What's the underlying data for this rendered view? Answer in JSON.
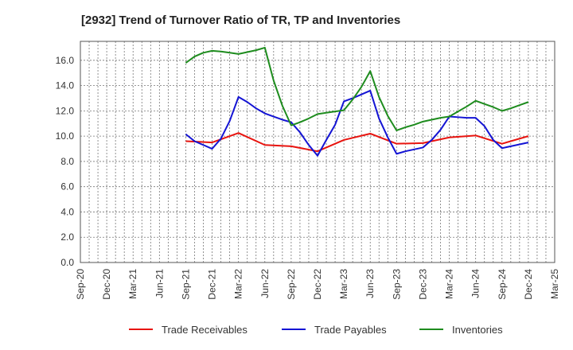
{
  "chart_data": {
    "type": "line",
    "title": "[2932]  Trend of Turnover Ratio of TR, TP and Inventories",
    "xlabel": "",
    "ylabel": "",
    "ylim": [
      0,
      17.5
    ],
    "yticks": [
      "0.0",
      "2.0",
      "4.0",
      "6.0",
      "8.0",
      "10.0",
      "12.0",
      "14.0",
      "16.0"
    ],
    "ytick_values": [
      0,
      2,
      4,
      6,
      8,
      10,
      12,
      14,
      16
    ],
    "x_tick_labels": [
      "Sep-20",
      "Dec-20",
      "Mar-21",
      "Jun-21",
      "Sep-21",
      "Dec-21",
      "Mar-22",
      "Jun-22",
      "Sep-22",
      "Dec-22",
      "Mar-23",
      "Jun-23",
      "Sep-23",
      "Dec-23",
      "Mar-24",
      "Jun-24",
      "Sep-24",
      "Dec-24",
      "Mar-25"
    ],
    "grid": true,
    "legend_position": "bottom",
    "series": [
      {
        "name": "Trade Receivables",
        "color": "#e8140f",
        "x": [
          "Sep-21",
          "Dec-21",
          "Mar-22",
          "Jun-22",
          "Sep-22",
          "Dec-22",
          "Mar-23",
          "Jun-23",
          "Sep-23",
          "Dec-23",
          "Mar-24",
          "Jun-24",
          "Sep-24",
          "Dec-24"
        ],
        "values": [
          9.6,
          9.5,
          10.25,
          9.3,
          9.2,
          8.8,
          9.7,
          10.2,
          9.4,
          9.45,
          9.9,
          10.05,
          9.4,
          10.0
        ]
      },
      {
        "name": "Trade Payables",
        "color": "#1414d4",
        "x": [
          "Sep-21",
          "Oct-21",
          "Nov-21",
          "Dec-21",
          "Jan-22",
          "Feb-22",
          "Mar-22",
          "Apr-22",
          "May-22",
          "Jun-22",
          "Jul-22",
          "Aug-22",
          "Sep-22",
          "Oct-22",
          "Nov-22",
          "Dec-22",
          "Jan-23",
          "Feb-23",
          "Mar-23",
          "Apr-23",
          "May-23",
          "Jun-23",
          "Jul-23",
          "Aug-23",
          "Sep-23",
          "Oct-23",
          "Nov-23",
          "Dec-23",
          "Jan-24",
          "Feb-24",
          "Mar-24",
          "Apr-24",
          "May-24",
          "Jun-24",
          "Jul-24",
          "Aug-24",
          "Sep-24",
          "Oct-24",
          "Nov-24",
          "Dec-24"
        ],
        "values": [
          10.15,
          9.6,
          9.3,
          9.0,
          9.8,
          11.2,
          13.1,
          12.7,
          12.2,
          11.8,
          11.55,
          11.3,
          11.1,
          10.3,
          9.3,
          8.45,
          9.7,
          10.9,
          12.75,
          13.0,
          13.3,
          13.6,
          11.4,
          9.9,
          8.6,
          8.8,
          8.95,
          9.1,
          9.7,
          10.5,
          11.55,
          11.5,
          11.45,
          11.45,
          10.8,
          9.7,
          9.05,
          9.2,
          9.35,
          9.5
        ]
      },
      {
        "name": "Inventories",
        "color": "#1e8c1e",
        "x": [
          "Sep-21",
          "Oct-21",
          "Nov-21",
          "Dec-21",
          "Jan-22",
          "Feb-22",
          "Mar-22",
          "Apr-22",
          "May-22",
          "Jun-22",
          "Jul-22",
          "Aug-22",
          "Sep-22",
          "Oct-22",
          "Nov-22",
          "Dec-22",
          "Jan-23",
          "Feb-23",
          "Mar-23",
          "Apr-23",
          "May-23",
          "Jun-23",
          "Jul-23",
          "Aug-23",
          "Sep-23",
          "Oct-23",
          "Nov-23",
          "Dec-23",
          "Jan-24",
          "Feb-24",
          "Mar-24",
          "Apr-24",
          "May-24",
          "Jun-24",
          "Jul-24",
          "Aug-24",
          "Sep-24",
          "Oct-24",
          "Nov-24",
          "Dec-24"
        ],
        "values": [
          15.8,
          16.3,
          16.6,
          16.75,
          16.7,
          16.6,
          16.5,
          16.65,
          16.8,
          17.0,
          14.4,
          12.4,
          10.85,
          11.1,
          11.4,
          11.75,
          11.85,
          11.95,
          12.05,
          12.9,
          13.9,
          15.15,
          13.1,
          11.6,
          10.45,
          10.7,
          10.9,
          11.15,
          11.3,
          11.45,
          11.55,
          11.95,
          12.35,
          12.8,
          12.55,
          12.3,
          12.0,
          12.2,
          12.45,
          12.7
        ]
      }
    ]
  }
}
